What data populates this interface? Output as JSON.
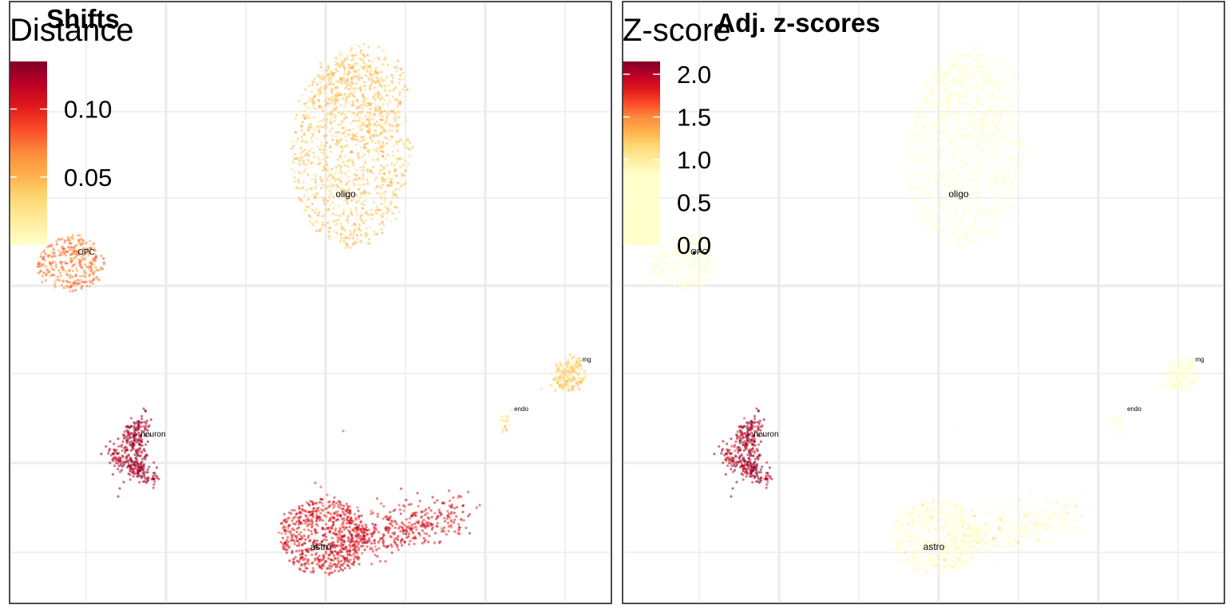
{
  "chart_data": [
    {
      "type": "scatter",
      "title": "Shifts",
      "legend": {
        "title": "Distance",
        "ticks": [
          "0.05",
          "0.10"
        ],
        "tick_values": [
          0.05,
          0.1
        ],
        "range": [
          0.0,
          0.135
        ],
        "colors": [
          "#FFFFCC",
          "#FFEDA0",
          "#FED976",
          "#FEB24C",
          "#FD8D3C",
          "#FC4E2A",
          "#E31A1C",
          "#BD0026",
          "#800026"
        ],
        "placement": "top-left"
      },
      "grid": true,
      "clusters": [
        {
          "label": "oligo",
          "value": 0.04
        },
        {
          "label": "OPC",
          "value": 0.07
        },
        {
          "label": "neuron",
          "value": 0.125
        },
        {
          "label": "astro",
          "value": 0.105
        },
        {
          "label": "endo",
          "value": 0.03
        },
        {
          "label": "mg",
          "value": 0.035
        }
      ]
    },
    {
      "type": "scatter",
      "title": "Adj. z-scores",
      "legend": {
        "title": "Z-score",
        "ticks": [
          "0.0",
          "0.5",
          "1.0",
          "1.5",
          "2.0"
        ],
        "tick_values": [
          0.0,
          0.5,
          1.0,
          1.5,
          2.0
        ],
        "range": [
          0.0,
          2.15
        ],
        "colors": [
          "#FFFFCC",
          "#FFFFCC",
          "#FFFFCC",
          "#FFFFCC",
          "#FFFFCC",
          "#FFFFCC",
          "#FFEDA0",
          "#FED976",
          "#FEB24C",
          "#FD8D3C",
          "#FC4E2A",
          "#E31A1C",
          "#BD0026",
          "#800026"
        ],
        "placement": "top-left"
      },
      "grid": true,
      "clusters": [
        {
          "label": "oligo",
          "value": 0.2
        },
        {
          "label": "OPC",
          "value": 0.3
        },
        {
          "label": "neuron",
          "value": 2.05
        },
        {
          "label": "astro",
          "value": 0.7
        },
        {
          "label": "endo",
          "value": 0.2
        },
        {
          "label": "mg",
          "value": 0.25
        }
      ]
    }
  ]
}
